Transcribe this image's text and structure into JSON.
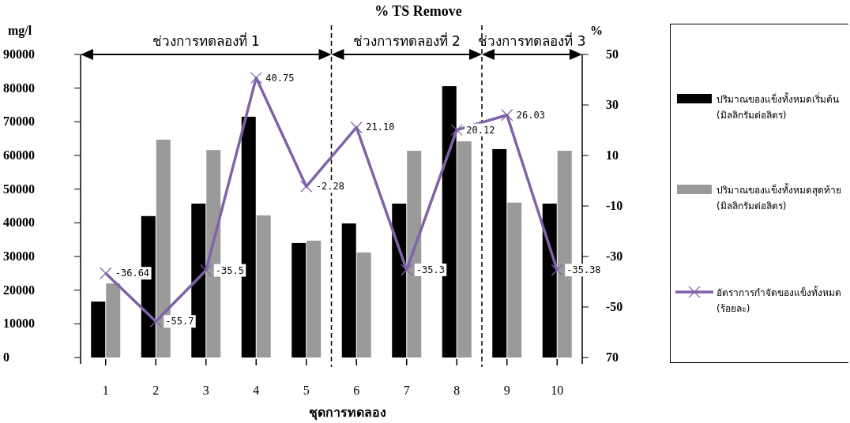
{
  "chart_data": {
    "type": "bar",
    "title": "% TS Remove",
    "xlabel": "ชุดการทดลอง",
    "ylabel": "mg/l",
    "y2label": "%",
    "x": [
      1,
      2,
      3,
      4,
      5,
      6,
      7,
      8,
      9,
      10
    ],
    "series": [
      {
        "name": "ปริมาณของแข็งทั้งหมดเริ่มต้น (มิลลิกรัมต่อลิตร)",
        "color": "#000000",
        "values": [
          16600,
          42000,
          45700,
          71500,
          34000,
          39800,
          45700,
          80600,
          61900,
          45700
        ]
      },
      {
        "name": "ปริมาณของแข็งทั้งหมดสุดท้าย (มิลลิกรัมต่อลิตร)",
        "color": "#9a9a9a",
        "values": [
          22000,
          64700,
          61600,
          42200,
          34700,
          31200,
          61400,
          64200,
          46000,
          61400
        ]
      },
      {
        "name": "อัตราการกำจัดของแข็งทั้งหมด (ร้อยละ)",
        "type": "line",
        "axis": "y2",
        "color": "#7f63a8",
        "marker": "cross",
        "values": [
          -36.64,
          -55.7,
          -35.5,
          40.75,
          -2.28,
          21.1,
          -35.3,
          20.12,
          26.03,
          -35.38
        ],
        "value_labels": [
          "-36.64",
          "-55.7",
          "-35.5",
          "40.75",
          "-2.28",
          "21.10",
          "-35.3",
          "20.12",
          "26.03",
          "-35.38"
        ]
      }
    ],
    "xlim": [
      0.5,
      10.5
    ],
    "xticks": [
      1,
      2,
      3,
      4,
      5,
      6,
      7,
      8,
      9,
      10
    ],
    "ylim": [
      0,
      90000
    ],
    "yticks": [
      0,
      10000,
      20000,
      30000,
      40000,
      50000,
      60000,
      70000,
      80000,
      90000
    ],
    "y2lim": [
      -70,
      50
    ],
    "y2ticks": [
      {
        "value": -70,
        "label": "70"
      },
      -50,
      -30,
      -10,
      10,
      30,
      50
    ],
    "ref_lines": [
      {
        "axis": "x",
        "value": 5.5,
        "line_style": "dashed"
      },
      {
        "axis": "x",
        "value": 8.5,
        "line_style": "dashed"
      }
    ],
    "annotations": [
      "ช่วงการทดลองที่ 1",
      "ช่วงการทดลองที่ 2",
      "ช่วงการทดลองที่ 3"
    ],
    "legend": "right"
  }
}
